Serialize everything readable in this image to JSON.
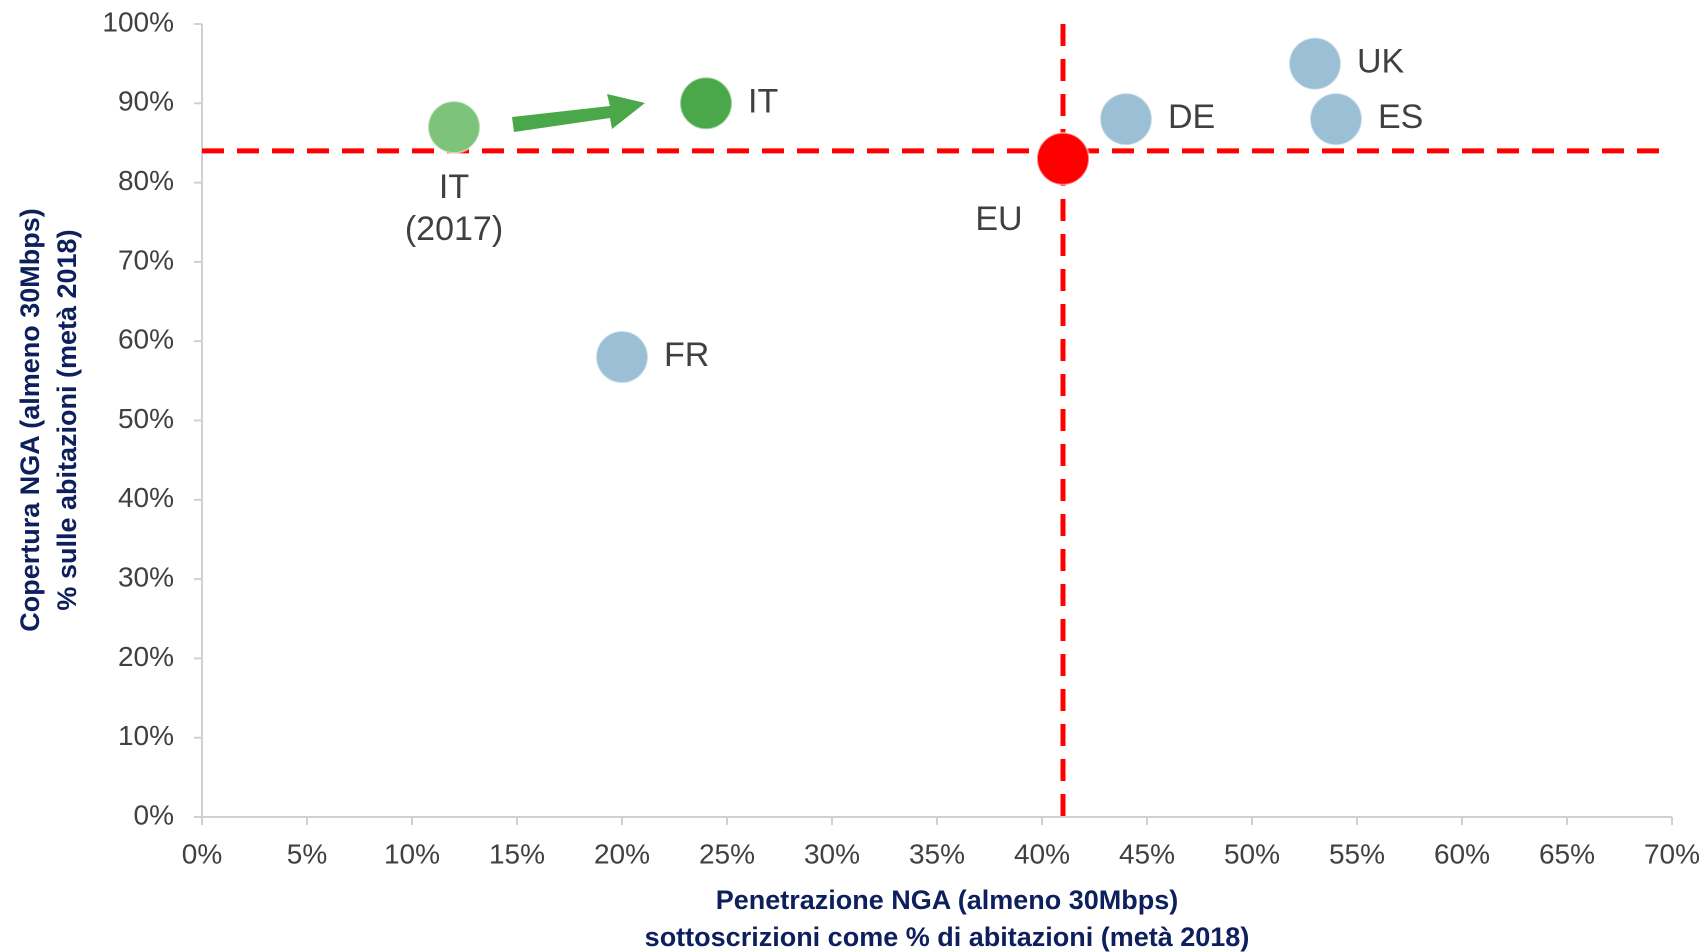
{
  "chart_data": {
    "type": "scatter",
    "xlabel": [
      "Penetrazione NGA (almeno 30Mbps)",
      "sottoscrizioni come % di abitazioni (metà 2018)"
    ],
    "ylabel": [
      "Copertura NGA (almeno 30Mbps)",
      "% sulle abitazioni (metà 2018)"
    ],
    "xlim": [
      0,
      70
    ],
    "ylim": [
      0,
      100
    ],
    "xticks": [
      {
        "value": 0,
        "label": "0%"
      },
      {
        "value": 5,
        "label": "5%"
      },
      {
        "value": 10,
        "label": "10%"
      },
      {
        "value": 15,
        "label": "15%"
      },
      {
        "value": 20,
        "label": "20%"
      },
      {
        "value": 25,
        "label": "25%"
      },
      {
        "value": 30,
        "label": "30%"
      },
      {
        "value": 35,
        "label": "35%"
      },
      {
        "value": 40,
        "label": "40%"
      },
      {
        "value": 45,
        "label": "45%"
      },
      {
        "value": 50,
        "label": "50%"
      },
      {
        "value": 55,
        "label": "55%"
      },
      {
        "value": 60,
        "label": "60%"
      },
      {
        "value": 65,
        "label": "65%"
      },
      {
        "value": 70,
        "label": "70%"
      }
    ],
    "yticks": [
      {
        "value": 0,
        "label": "0%"
      },
      {
        "value": 10,
        "label": "10%"
      },
      {
        "value": 20,
        "label": "20%"
      },
      {
        "value": 30,
        "label": "30%"
      },
      {
        "value": 40,
        "label": "40%"
      },
      {
        "value": 50,
        "label": "50%"
      },
      {
        "value": 60,
        "label": "60%"
      },
      {
        "value": 70,
        "label": "70%"
      },
      {
        "value": 80,
        "label": "80%"
      },
      {
        "value": 90,
        "label": "90%"
      },
      {
        "value": 100,
        "label": "100%"
      }
    ],
    "reference_x": 41,
    "reference_y": 84,
    "reference_color": "#ff0000",
    "points": [
      {
        "label": [
          "IT",
          "(2017)"
        ],
        "x": 12,
        "y": 87,
        "color": "#7dc47a"
      },
      {
        "label": [
          "IT"
        ],
        "x": 24,
        "y": 90,
        "color": "#4aa84a"
      },
      {
        "label": [
          "FR"
        ],
        "x": 20,
        "y": 58,
        "color": "#9bbfd4"
      },
      {
        "label": [
          "EU"
        ],
        "x": 41,
        "y": 83,
        "color": "#ff0000"
      },
      {
        "label": [
          "DE"
        ],
        "x": 44,
        "y": 88,
        "color": "#9bbfd4"
      },
      {
        "label": [
          "UK"
        ],
        "x": 53,
        "y": 95,
        "color": "#9bbfd4"
      },
      {
        "label": [
          "ES"
        ],
        "x": 54,
        "y": 88,
        "color": "#9bbfd4"
      }
    ]
  }
}
